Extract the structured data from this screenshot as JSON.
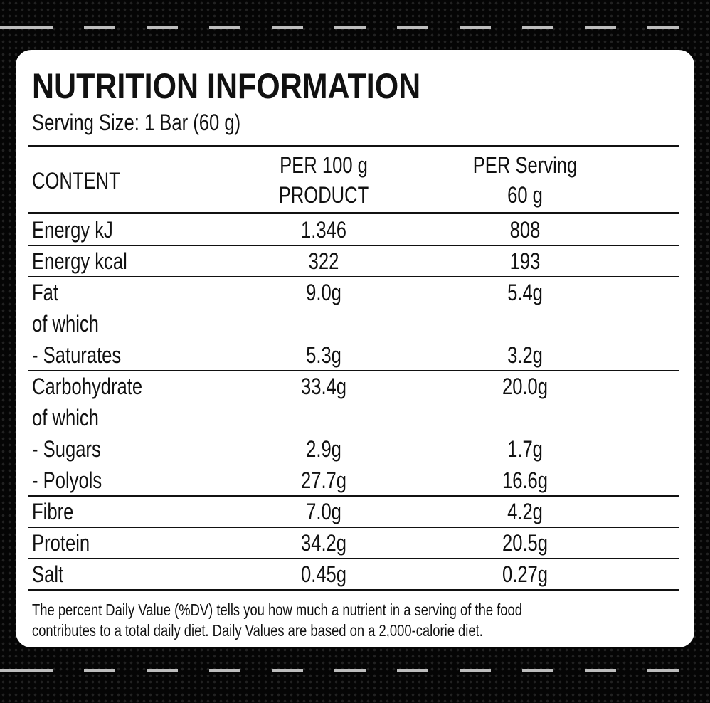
{
  "header": {
    "title": "NUTRITION INFORMATION",
    "serving": "Serving Size: 1 Bar (60 g)"
  },
  "table": {
    "columns": [
      [
        "CONTENT"
      ],
      [
        "PER 100 g",
        "PRODUCT"
      ],
      [
        "PER Serving",
        "60 g"
      ]
    ],
    "groups": [
      [
        [
          "Energy kJ",
          "1.346",
          "808"
        ]
      ],
      [
        [
          "Energy kcal",
          "322",
          "193"
        ]
      ],
      [
        [
          "Fat",
          "9.0g",
          "5.4g"
        ],
        [
          "of which"
        ],
        [
          "- Saturates",
          "5.3g",
          "3.2g"
        ]
      ],
      [
        [
          "Carbohydrate",
          "33.4g",
          "20.0g"
        ],
        [
          "of which"
        ],
        [
          "- Sugars",
          "2.9g",
          "1.7g"
        ],
        [
          "- Polyols",
          "27.7g",
          "16.6g"
        ]
      ],
      [
        [
          "Fibre",
          "7.0g",
          "4.2g"
        ]
      ],
      [
        [
          "Protein",
          "34.2g",
          "20.5g"
        ]
      ],
      [
        [
          "Salt",
          "0.45g",
          "0.27g"
        ]
      ]
    ]
  },
  "footnote": [
    "The percent Daily Value (%DV) tells you how much a nutrient in a serving of the food",
    "contributes to a total daily diet. Daily Values are based on a 2,000-calorie diet."
  ]
}
